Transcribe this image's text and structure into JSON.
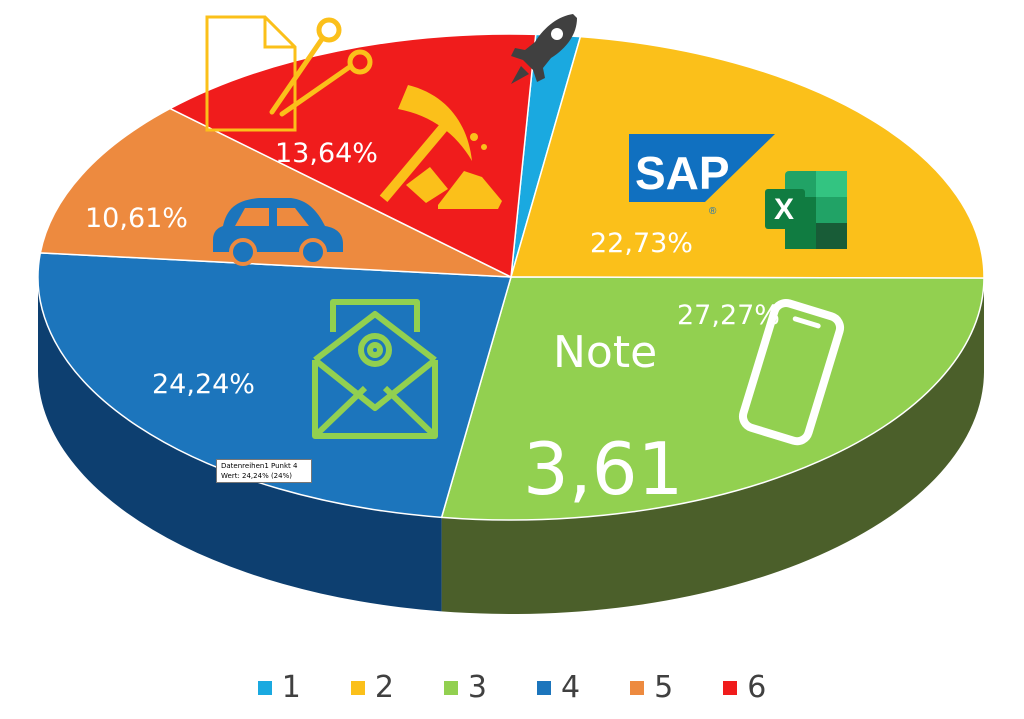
{
  "chart_data": {
    "type": "pie",
    "categories": [
      "1",
      "2",
      "3",
      "4",
      "5",
      "6"
    ],
    "values": [
      1.51,
      22.73,
      27.27,
      24.24,
      10.61,
      13.64
    ],
    "data_labels": [
      "",
      "22,73%",
      "27,27%",
      "24,24%",
      "10,61%",
      "13,64%"
    ],
    "colors": [
      "#1aa9e0",
      "#fbc01a",
      "#92d050",
      "#1c75bc",
      "#ed8a3f",
      "#f01c1c"
    ],
    "side_colors": [
      "#0f7aa5",
      "#b88a0e",
      "#4b5f2a",
      "#0d3f70",
      "#b5621e",
      "#a81010"
    ],
    "legend_position": "bottom",
    "three_d": true
  },
  "annotations": {
    "note_label": "Note",
    "score_label": "3,61"
  },
  "icons": [
    "rocket-icon",
    "sap-logo",
    "excel-icon",
    "smartphone-icon",
    "email-icon",
    "car-icon",
    "pickaxe-icon",
    "scissors-icon",
    "document-icon"
  ],
  "logo_text": {
    "sap": "SAP",
    "excel": "X"
  },
  "tooltip": {
    "line1": "Datenreihen1 Punkt 4",
    "line2": "Wert: 24,24% (24%)"
  }
}
